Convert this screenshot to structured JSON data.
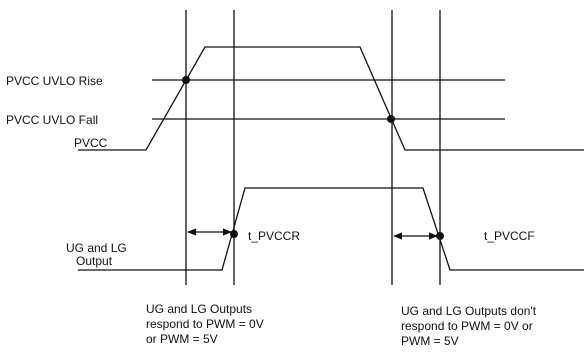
{
  "labels": {
    "pvcc_uvlo_rise": "PVCC UVLO Rise",
    "pvcc_uvlo_fall": "PVCC UVLO Fall",
    "pvcc": "PVCC",
    "ug_lg_output_line1": "UG and LG",
    "ug_lg_output_line2": "Output",
    "t_pvccr": "t_PVCCR",
    "t_pvccf": "t_PVCCF"
  },
  "notes": {
    "left_line1": "UG and LG Outputs",
    "left_line2": "respond to PWM = 0V",
    "left_line3": "or PWM = 5V",
    "right_line1": "UG and LG Outputs don't",
    "right_line2": "respond to PWM = 0V or",
    "right_line3": "PWM = 5V"
  }
}
